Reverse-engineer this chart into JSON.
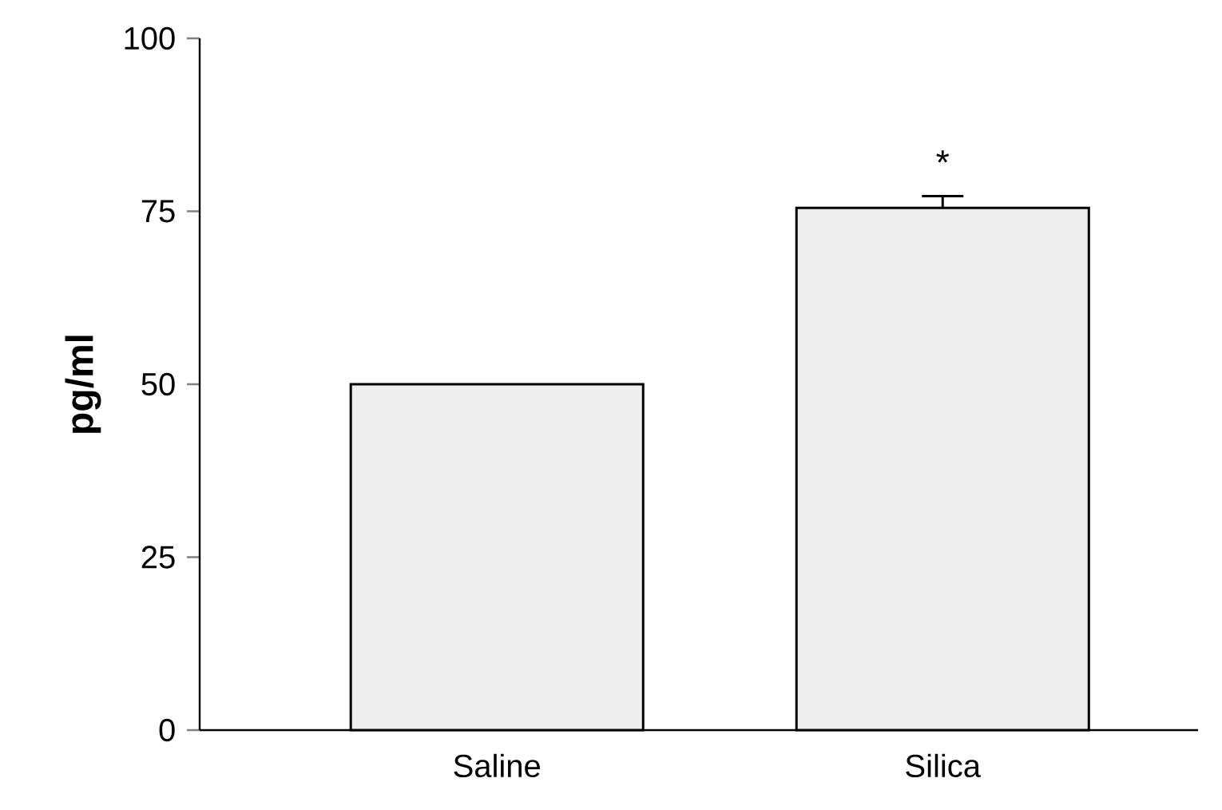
{
  "chart_data": {
    "type": "bar",
    "ylabel": "pg/ml",
    "categories": [
      "Saline",
      "Silica"
    ],
    "values": [
      50,
      75.5
    ],
    "errors": [
      null,
      1.7
    ],
    "color": "#eeeeee",
    "ylim": [
      0,
      100
    ],
    "yticks": [
      0,
      25,
      50,
      75,
      100
    ],
    "annotations": [
      "*"
    ]
  }
}
